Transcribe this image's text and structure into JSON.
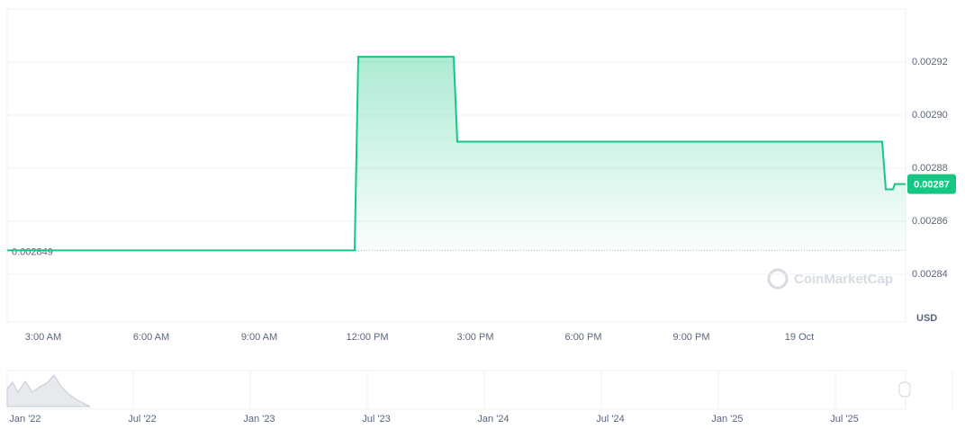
{
  "chart_data": {
    "type": "line",
    "color": "#16c784",
    "x": [
      2,
      11.65,
      11.75,
      14.4,
      14.5,
      26.3,
      26.4,
      26.6,
      26.65,
      26.95
    ],
    "values": [
      0.002849,
      0.002849,
      0.002922,
      0.002922,
      0.00289,
      0.00289,
      0.002872,
      0.002872,
      0.002874,
      0.002874
    ],
    "xlim": [
      2,
      26.95
    ],
    "xticks": [
      {
        "value": 3,
        "label": "3:00 AM"
      },
      {
        "value": 6,
        "label": "6:00 AM"
      },
      {
        "value": 9,
        "label": "9:00 AM"
      },
      {
        "value": 12,
        "label": "12:00 PM"
      },
      {
        "value": 15,
        "label": "3:00 PM"
      },
      {
        "value": 18,
        "label": "6:00 PM"
      },
      {
        "value": 21,
        "label": "9:00 PM"
      },
      {
        "value": 24,
        "label": "19 Oct"
      }
    ],
    "ylim": [
      0.002822,
      0.00294
    ],
    "yticks": [
      0.00284,
      0.00286,
      0.00288,
      {
        "value": 0.0029,
        "label": "0.00290"
      },
      0.00292
    ],
    "grid": true,
    "reference_value": 0.002849,
    "last_price": {
      "value": 0.002874,
      "label": "0.00287"
    },
    "currency": "USD",
    "watermark": "CoinMarketCap",
    "navigator_ticks": [
      "Jan '22",
      "Jul '22",
      "Jan '23",
      "Jul '23",
      "Jan '24",
      "Jul '24",
      "Jan '25",
      "Jul '25"
    ]
  }
}
